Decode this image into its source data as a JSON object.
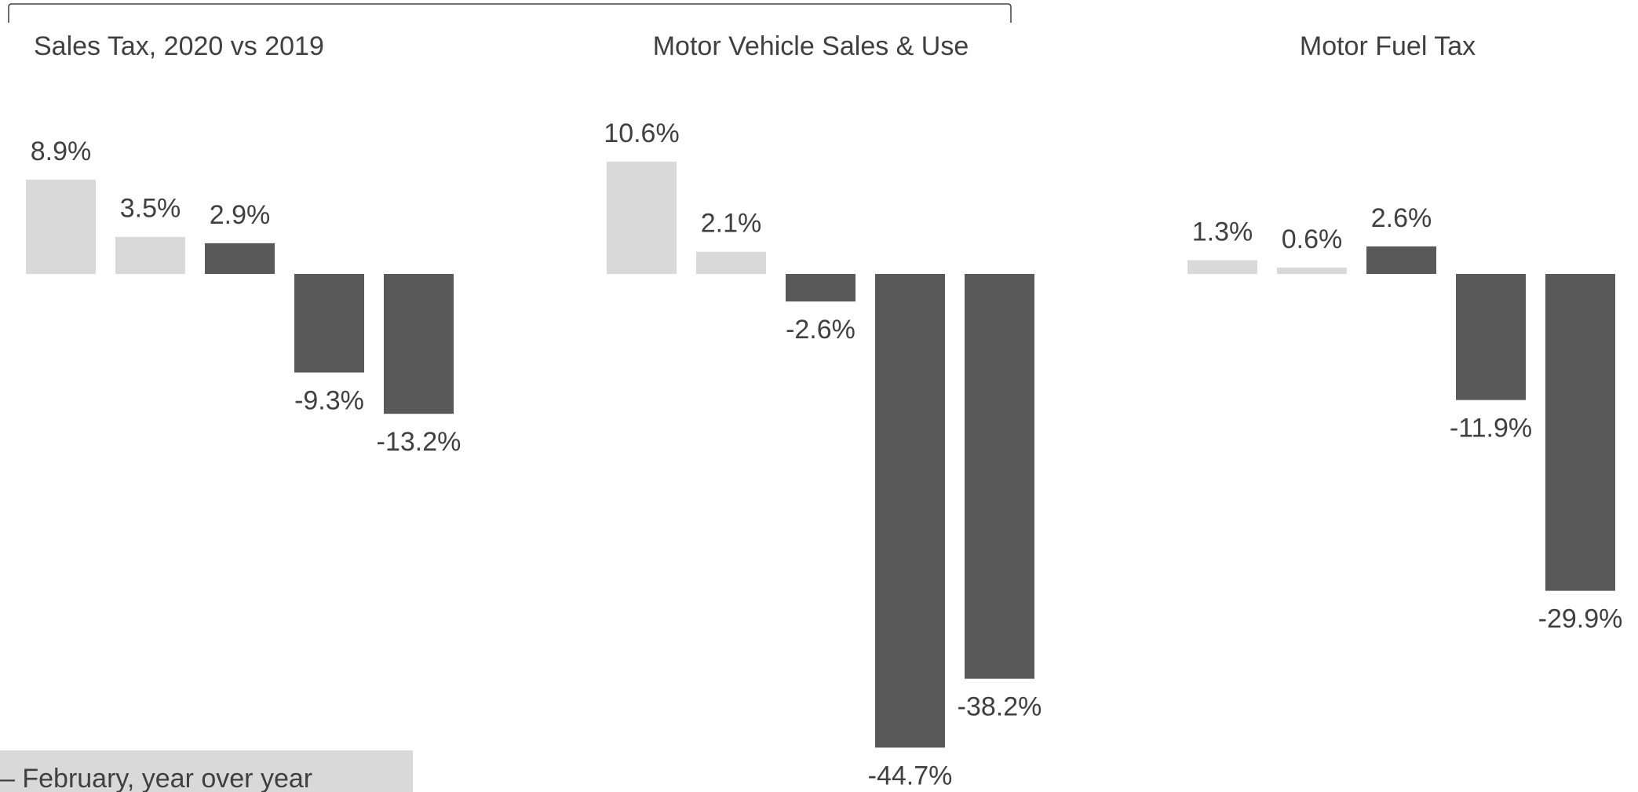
{
  "chart_data": [
    {
      "type": "bar",
      "title": "Sales Tax, 2020 vs 2019",
      "categories": [
        null,
        null,
        null,
        null,
        null
      ],
      "values": [
        8.9,
        3.5,
        2.9,
        -9.3,
        -13.2
      ],
      "value_labels": [
        "8.9%",
        "3.5%",
        "2.9%",
        "-9.3%",
        "-13.2%"
      ],
      "colors": [
        "#d9d9d9",
        "#d9d9d9",
        "#595959",
        "#595959",
        "#595959"
      ]
    },
    {
      "type": "bar",
      "title": "Motor Vehicle Sales & Use",
      "categories": [
        null,
        null,
        null,
        null,
        null
      ],
      "values": [
        10.6,
        2.1,
        -2.6,
        -44.7,
        -38.2
      ],
      "value_labels": [
        "10.6%",
        "2.1%",
        "-2.6%",
        "-44.7%",
        "-38.2%"
      ],
      "colors": [
        "#d9d9d9",
        "#d9d9d9",
        "#595959",
        "#595959",
        "#595959"
      ]
    },
    {
      "type": "bar",
      "title": "Motor Fuel Tax",
      "categories": [
        null,
        null,
        null,
        null,
        null
      ],
      "values": [
        1.3,
        0.6,
        2.6,
        -11.9,
        -29.9
      ],
      "value_labels": [
        "1.3%",
        "0.6%",
        "2.6%",
        "-11.9%",
        "-29.9%"
      ],
      "colors": [
        "#d9d9d9",
        "#d9d9d9",
        "#595959",
        "#595959",
        "#595959"
      ]
    }
  ],
  "legend_label": "– February, year over year"
}
